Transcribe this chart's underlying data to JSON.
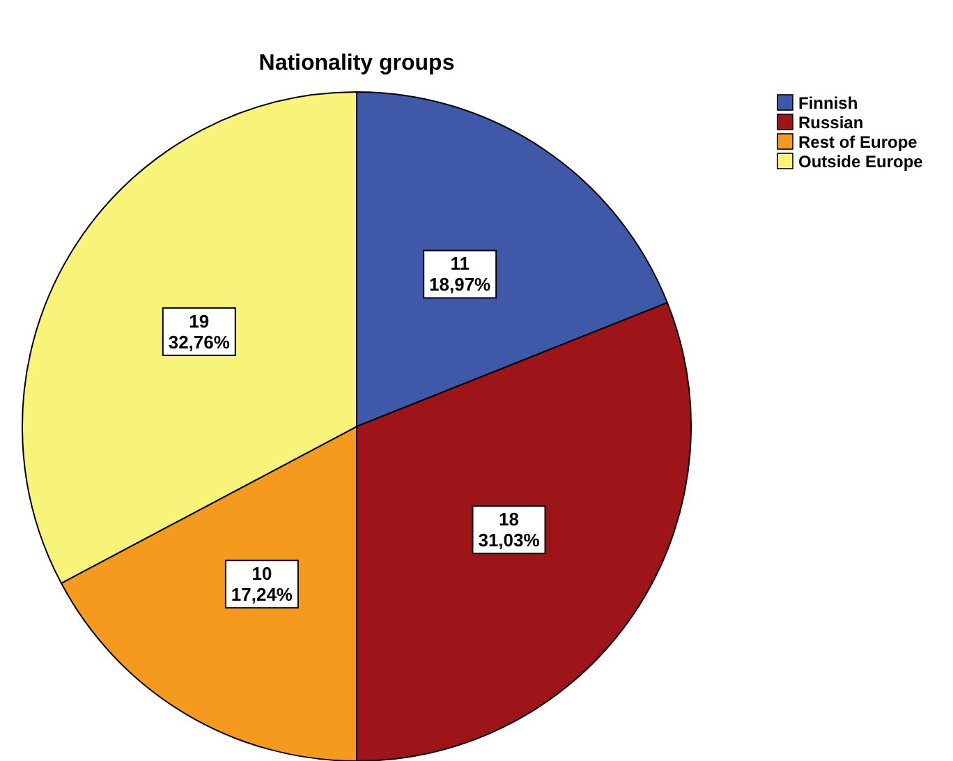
{
  "chart_data": {
    "type": "pie",
    "title": "Nationality groups",
    "categories": [
      "Finnish",
      "Russian",
      "Rest of Europe",
      "Outside Europe"
    ],
    "values": [
      11,
      18,
      10,
      19
    ],
    "colors": [
      "#3f58a8",
      "#9e1519",
      "#f5991f",
      "#f8f47a"
    ],
    "value_labels": [
      "11\n18,97%",
      "18\n31,03%",
      "10\n17,24%",
      "19\n32,76%"
    ],
    "legend": "top right"
  }
}
